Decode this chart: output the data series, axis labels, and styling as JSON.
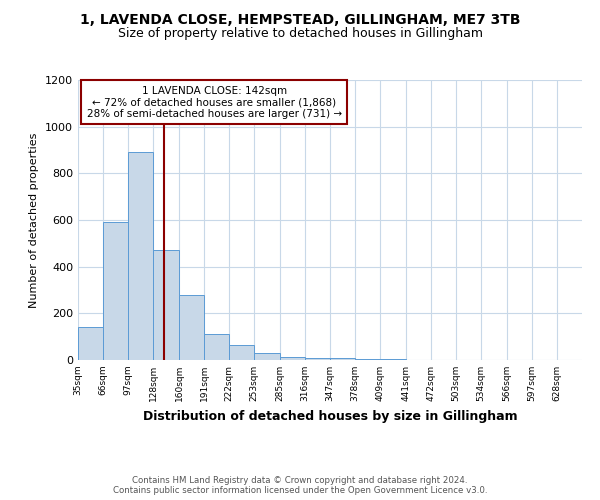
{
  "title1": "1, LAVENDA CLOSE, HEMPSTEAD, GILLINGHAM, ME7 3TB",
  "title2": "Size of property relative to detached houses in Gillingham",
  "xlabel": "Distribution of detached houses by size in Gillingham",
  "ylabel": "Number of detached properties",
  "footnote1": "Contains HM Land Registry data © Crown copyright and database right 2024.",
  "footnote2": "Contains public sector information licensed under the Open Government Licence v3.0.",
  "bar_edges": [
    35,
    66,
    97,
    128,
    160,
    191,
    222,
    253,
    285,
    316,
    347,
    378,
    409,
    441,
    472,
    503,
    534,
    566,
    597,
    628,
    659
  ],
  "bar_heights": [
    140,
    590,
    890,
    470,
    280,
    110,
    65,
    30,
    15,
    10,
    7,
    5,
    5,
    2,
    0,
    0,
    0,
    0,
    0,
    0
  ],
  "bar_color": "#c8d8e8",
  "bar_edgecolor": "#5b9bd5",
  "vline_x": 142,
  "vline_color": "#8b0000",
  "annotation_line1": "1 LAVENDA CLOSE: 142sqm",
  "annotation_line2": "← 72% of detached houses are smaller (1,868)",
  "annotation_line3": "28% of semi-detached houses are larger (731) →",
  "annotation_box_edgecolor": "#8b0000",
  "annotation_box_facecolor": "#ffffff",
  "ylim": [
    0,
    1200
  ],
  "yticks": [
    0,
    200,
    400,
    600,
    800,
    1000,
    1200
  ],
  "bg_color": "#ffffff",
  "grid_color": "#c8d8e8"
}
